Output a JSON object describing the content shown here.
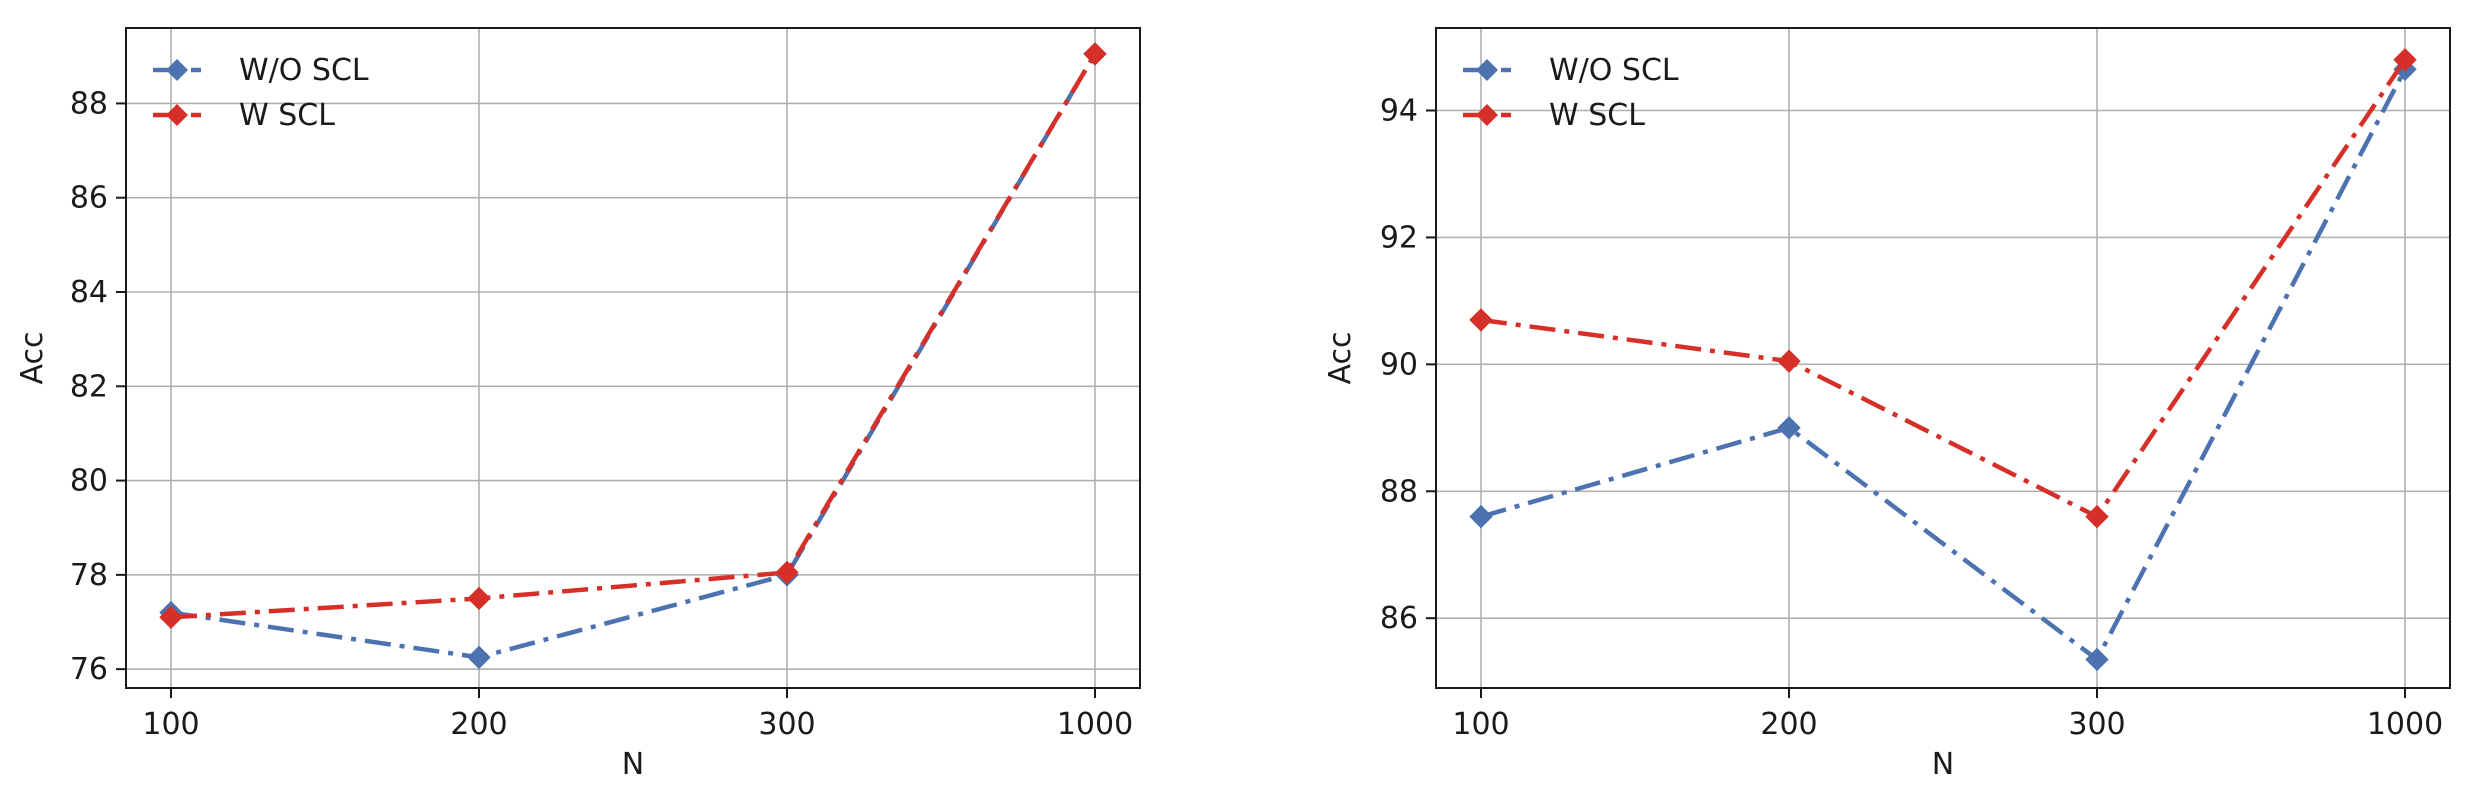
{
  "chart_data": [
    {
      "type": "line",
      "title": "",
      "xlabel": "N",
      "ylabel": "Acc",
      "categories": [
        "100",
        "200",
        "300",
        "1000"
      ],
      "ylim": [
        75.6,
        89.6
      ],
      "yticks": [
        76,
        78,
        80,
        82,
        84,
        86,
        88
      ],
      "grid": true,
      "legend_position": "top-left",
      "series": [
        {
          "name": "W/O SCL",
          "color": "#4c72b0",
          "values": [
            77.2,
            76.25,
            78.0,
            89.05
          ]
        },
        {
          "name": "W SCL",
          "color": "#d62f28",
          "values": [
            77.1,
            77.5,
            78.05,
            89.05
          ]
        }
      ]
    },
    {
      "type": "line",
      "title": "",
      "xlabel": "N",
      "ylabel": "Acc",
      "categories": [
        "100",
        "200",
        "300",
        "1000"
      ],
      "ylim": [
        84.9,
        95.3
      ],
      "yticks": [
        86,
        88,
        90,
        92,
        94
      ],
      "grid": true,
      "legend_position": "top-left",
      "series": [
        {
          "name": "W/O SCL",
          "color": "#4c72b0",
          "values": [
            87.6,
            89.0,
            85.35,
            94.65
          ]
        },
        {
          "name": "W SCL",
          "color": "#d62f28",
          "values": [
            90.7,
            90.05,
            87.6,
            94.8
          ]
        }
      ]
    }
  ]
}
